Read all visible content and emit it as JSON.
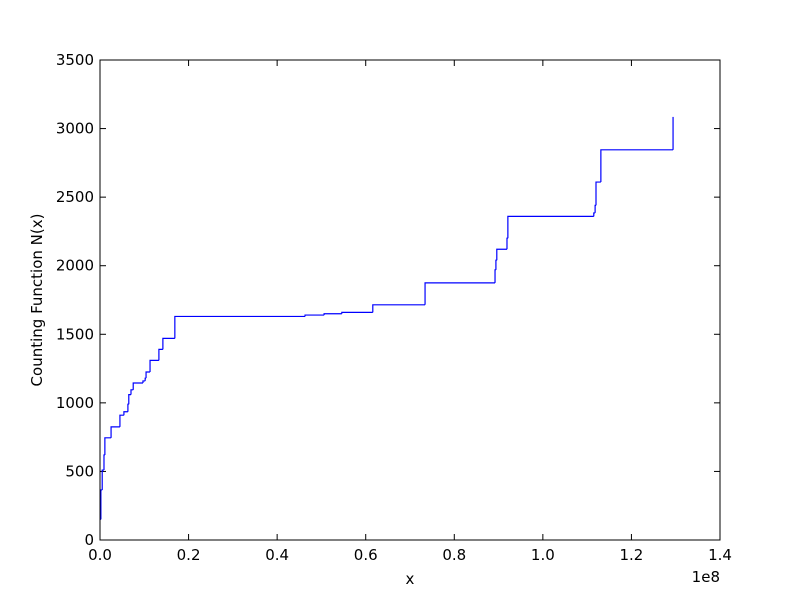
{
  "chart_data": {
    "type": "step",
    "xlabel": "x",
    "ylabel": "Counting Function N(x)",
    "x_offset_label": "1e8",
    "color": "#0000ff",
    "x": [
      0,
      0.002,
      0.005,
      0.009,
      0.011,
      0.025,
      0.045,
      0.054,
      0.063,
      0.065,
      0.07,
      0.075,
      0.097,
      0.102,
      0.104,
      0.113,
      0.133,
      0.142,
      0.169,
      0.463,
      0.506,
      0.546,
      0.616,
      0.734,
      0.892,
      0.894,
      0.896,
      0.919,
      0.921,
      1.115,
      1.118,
      1.12,
      1.131,
      1.294
    ],
    "y": [
      150,
      365,
      510,
      620,
      745,
      825,
      910,
      935,
      990,
      1060,
      1095,
      1145,
      1160,
      1180,
      1225,
      1310,
      1390,
      1470,
      1630,
      1640,
      1650,
      1660,
      1715,
      1875,
      1970,
      2040,
      2120,
      2200,
      2360,
      2385,
      2440,
      2610,
      2845,
      3085
    ],
    "xlim": [
      0,
      1.4
    ],
    "xticks": [
      {
        "value": 0,
        "label": "0.0"
      },
      {
        "value": 0.2,
        "label": "0.2"
      },
      {
        "value": 0.4,
        "label": "0.4"
      },
      {
        "value": 0.6,
        "label": "0.6"
      },
      {
        "value": 0.8,
        "label": "0.8"
      },
      {
        "value": 1.0,
        "label": "1.0"
      },
      {
        "value": 1.2,
        "label": "1.2"
      },
      {
        "value": 1.4,
        "label": "1.4"
      }
    ],
    "ylim": [
      0,
      3500
    ],
    "yticks": [
      0,
      500,
      1000,
      1500,
      2000,
      2500,
      3000,
      3500
    ]
  }
}
